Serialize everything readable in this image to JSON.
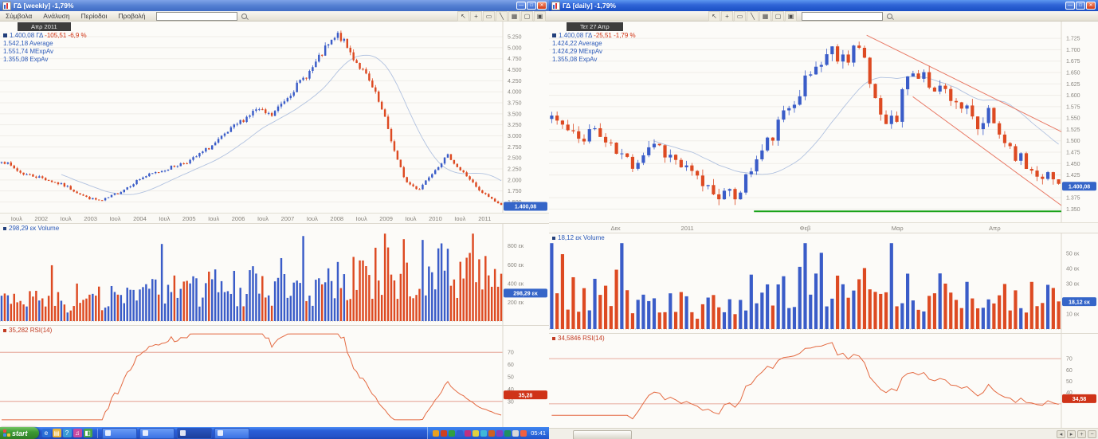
{
  "icons": {
    "minimize": "—",
    "maximize": "□",
    "close": "✕",
    "pointer": "↖",
    "crosshair": "+",
    "select": "▭",
    "trendline": "╲",
    "pattern": "▦",
    "rect": "▢",
    "save": "▣"
  },
  "left": {
    "title": "ΓΔ [weekly] -1,79%",
    "menu": [
      "Σύμβολα",
      "Ανάλυση",
      "Περίοδοι",
      "Προβολή"
    ],
    "search_value": "",
    "toolbar": [
      "pointer",
      "crosshair",
      "select",
      "trendline",
      "pattern",
      "rect",
      "save"
    ],
    "legend": {
      "date": "Απρ 2011",
      "price": "1.400,08 ΓΔ",
      "change": "-105,51 -6,9 %",
      "lines": [
        "1.542,18 Average",
        "1.551,74 MExpAv",
        "1.355,08 ExpAv"
      ]
    },
    "volume_legend": "298,29 εκ Volume",
    "rsi_legend": "35,282 RSI(14)",
    "badges": {
      "price": "1.400,08",
      "volume": "298,29 εκ",
      "rsi": "35,28"
    }
  },
  "right": {
    "title": "ΓΔ [daily] -1,79%",
    "search_value": "",
    "toolbar": [
      "pointer",
      "crosshair",
      "select",
      "trendline",
      "pattern",
      "rect",
      "save"
    ],
    "legend": {
      "date": "Τετ 27 Απρ",
      "price": "1.400,08 ΓΔ",
      "change": "-25,51 -1,79 %",
      "lines": [
        "1.424,22 Average",
        "1.424,29 MExpAv",
        "1.355,08 ExpAv"
      ]
    },
    "volume_legend": "18,12 εκ Volume",
    "rsi_legend": "34,5846 RSI(14)",
    "badges": {
      "price": "1.400,08",
      "volume": "18,12 εκ",
      "rsi": "34,58"
    }
  },
  "taskbar": {
    "start_label": "start",
    "clock": "05:41",
    "quick_launch": [
      "ie-icon",
      "folder-icon",
      "help-icon",
      "media-icon",
      "desktop-icon"
    ],
    "task_buttons": [
      "window-button-1",
      "window-button-2",
      "window-button-3",
      "window-button-4"
    ],
    "tray_icons": [
      "volume-icon",
      "network-icon",
      "antivirus-icon",
      "messenger-icon",
      "update-icon",
      "usb-icon",
      "mail-icon",
      "chart-app-icon",
      "alert-icon",
      "shield-icon",
      "sync-icon",
      "status-icon"
    ]
  },
  "chart_data": [
    {
      "type": "candlestick",
      "title": "ΓΔ weekly with Volume and RSI(14)",
      "timeframe": "weekly",
      "n": 160,
      "seed": 7,
      "noise": 0.018,
      "y_domain": [
        1400,
        5450
      ],
      "price_ticks": [
        "5.250",
        "5.000",
        "4.750",
        "4.500",
        "4.250",
        "4.000",
        "3.750",
        "3.500",
        "3.250",
        "3.000",
        "2.750",
        "2.500",
        "2.250",
        "2.000",
        "1.750",
        "1.500"
      ],
      "price_anchors": [
        [
          0,
          2450
        ],
        [
          0.04,
          2150
        ],
        [
          0.08,
          2050
        ],
        [
          0.13,
          1850
        ],
        [
          0.17,
          1600
        ],
        [
          0.2,
          1520
        ],
        [
          0.24,
          1750
        ],
        [
          0.28,
          2050
        ],
        [
          0.33,
          2250
        ],
        [
          0.38,
          2450
        ],
        [
          0.43,
          2850
        ],
        [
          0.47,
          3250
        ],
        [
          0.51,
          3600
        ],
        [
          0.54,
          3450
        ],
        [
          0.58,
          4000
        ],
        [
          0.62,
          4500
        ],
        [
          0.65,
          5000
        ],
        [
          0.675,
          5300
        ],
        [
          0.7,
          4850
        ],
        [
          0.73,
          4350
        ],
        [
          0.75,
          3900
        ],
        [
          0.77,
          3300
        ],
        [
          0.79,
          2500
        ],
        [
          0.81,
          1950
        ],
        [
          0.835,
          1780
        ],
        [
          0.86,
          2150
        ],
        [
          0.88,
          2400
        ],
        [
          0.895,
          2560
        ],
        [
          0.915,
          2250
        ],
        [
          0.935,
          2050
        ],
        [
          0.955,
          1750
        ],
        [
          0.975,
          1620
        ],
        [
          1,
          1420
        ]
      ],
      "x_ticks": [
        "Ιουλ",
        "2002",
        "Ιουλ",
        "2003",
        "Ιουλ",
        "2004",
        "Ιουλ",
        "2005",
        "Ιουλ",
        "2006",
        "Ιουλ",
        "2007",
        "Ιουλ",
        "2008",
        "Ιουλ",
        "2009",
        "Ιουλ",
        "2010",
        "Ιουλ",
        "2011"
      ],
      "x_tick_pos": [
        0.033,
        0.082,
        0.131,
        0.18,
        0.229,
        0.278,
        0.327,
        0.376,
        0.425,
        0.474,
        0.523,
        0.572,
        0.621,
        0.67,
        0.719,
        0.768,
        0.817,
        0.866,
        0.915,
        0.964
      ],
      "volume_ticks": [
        "800 εκ",
        "600 εκ",
        "400 εκ",
        "200 εκ"
      ],
      "volume_domain": [
        0,
        950
      ],
      "vol_anchors": [
        [
          0,
          200
        ],
        [
          0.2,
          240
        ],
        [
          0.35,
          330
        ],
        [
          0.5,
          390
        ],
        [
          0.62,
          310
        ],
        [
          0.7,
          480
        ],
        [
          0.78,
          540
        ],
        [
          0.85,
          620
        ],
        [
          0.92,
          540
        ],
        [
          1,
          430
        ]
      ],
      "rsi_ticks": [
        "70",
        "60",
        "50",
        "40",
        "30"
      ],
      "rsi_domain": [
        13,
        87
      ],
      "last": {
        "price": 1400.08,
        "volume": 298.29,
        "rsi": 35.28
      }
    },
    {
      "type": "candlestick",
      "title": "ΓΔ daily with Volume, RSI(14), descending channel and support",
      "timeframe": "daily",
      "n": 95,
      "seed": 11,
      "noise": 0.012,
      "y_domain": [
        1335,
        1748
      ],
      "price_ticks": [
        "1.725",
        "1.700",
        "1.675",
        "1.650",
        "1.625",
        "1.600",
        "1.575",
        "1.550",
        "1.525",
        "1.500",
        "1.475",
        "1.450",
        "1.425",
        "1.375",
        "1.350"
      ],
      "price_anchors": [
        [
          0,
          1555
        ],
        [
          0.05,
          1500
        ],
        [
          0.08,
          1530
        ],
        [
          0.12,
          1480
        ],
        [
          0.16,
          1450
        ],
        [
          0.2,
          1500
        ],
        [
          0.24,
          1460
        ],
        [
          0.28,
          1420
        ],
        [
          0.32,
          1390
        ],
        [
          0.36,
          1375
        ],
        [
          0.4,
          1450
        ],
        [
          0.44,
          1520
        ],
        [
          0.48,
          1600
        ],
        [
          0.52,
          1660
        ],
        [
          0.55,
          1700
        ],
        [
          0.58,
          1680
        ],
        [
          0.6,
          1720
        ],
        [
          0.63,
          1620
        ],
        [
          0.65,
          1560
        ],
        [
          0.68,
          1540
        ],
        [
          0.7,
          1650
        ],
        [
          0.73,
          1640
        ],
        [
          0.76,
          1620
        ],
        [
          0.79,
          1600
        ],
        [
          0.82,
          1560
        ],
        [
          0.84,
          1520
        ],
        [
          0.86,
          1560
        ],
        [
          0.88,
          1520
        ],
        [
          0.91,
          1480
        ],
        [
          0.94,
          1440
        ],
        [
          0.97,
          1430
        ],
        [
          1,
          1405
        ]
      ],
      "x_ticks": [
        "Δεκ",
        "2011",
        "Φεβ",
        "Μαρ",
        "Απρ"
      ],
      "x_tick_pos": [
        0.13,
        0.27,
        0.5,
        0.68,
        0.87
      ],
      "volume_ticks": [
        "50 εκ",
        "40 εκ",
        "30 εκ",
        "10 εκ"
      ],
      "volume_domain": [
        0,
        58
      ],
      "vol_anchors": [
        [
          0,
          22
        ],
        [
          0.12,
          26
        ],
        [
          0.22,
          18
        ],
        [
          0.32,
          16
        ],
        [
          0.42,
          26
        ],
        [
          0.52,
          30
        ],
        [
          0.6,
          28
        ],
        [
          0.68,
          30
        ],
        [
          0.78,
          26
        ],
        [
          0.88,
          24
        ],
        [
          1,
          19
        ]
      ],
      "rsi_ticks": [
        "70",
        "60",
        "50",
        "40"
      ],
      "rsi_domain": [
        13,
        87
      ],
      "channel_upper": [
        [
          0.62,
          1732
        ],
        [
          1,
          1520
        ]
      ],
      "channel_lower": [
        [
          0.71,
          1597
        ],
        [
          1,
          1358
        ]
      ],
      "support": [
        [
          0.4,
          1345
        ],
        [
          1,
          1345
        ]
      ],
      "last": {
        "price": 1400.08,
        "volume": 18.12,
        "rsi": 34.58
      }
    }
  ],
  "colors": {
    "candle_up": "#3a5cc8",
    "candle_down": "#dd4a22",
    "rsi_line": "#e46a42",
    "rsi_ref": "#df9180",
    "price_badge": "#3565c8",
    "rsi_badge": "#cf3318",
    "channel": "#e87a66",
    "support": "#1aa21a"
  }
}
